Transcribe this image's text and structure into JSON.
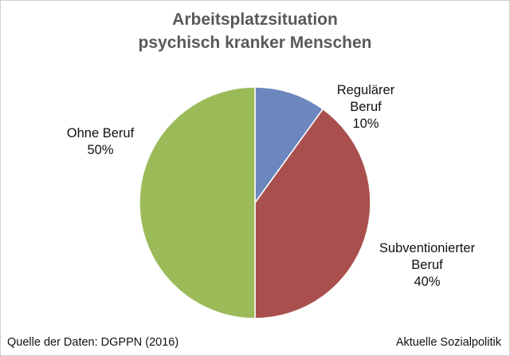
{
  "chart_data": {
    "type": "pie",
    "title": [
      "Arbeitsplatzsituation",
      "psychisch kranker Menschen"
    ],
    "slices": [
      {
        "label": [
          "Regulärer",
          "Beruf"
        ],
        "value_label": "10%",
        "value": 10,
        "color": "#6b87be"
      },
      {
        "label": [
          "Subventionierter",
          "Beruf"
        ],
        "value_label": "40%",
        "value": 40,
        "color": "#a94f4d"
      },
      {
        "label": [
          "Ohne Beruf"
        ],
        "value_label": "50%",
        "value": 50,
        "color": "#9bbb59"
      }
    ],
    "start_angle_deg": 0,
    "direction": "clockwise"
  },
  "footer": {
    "source": "Quelle der Daten: DGPPN (2016)",
    "brand": "Aktuelle Sozialpolitik"
  }
}
